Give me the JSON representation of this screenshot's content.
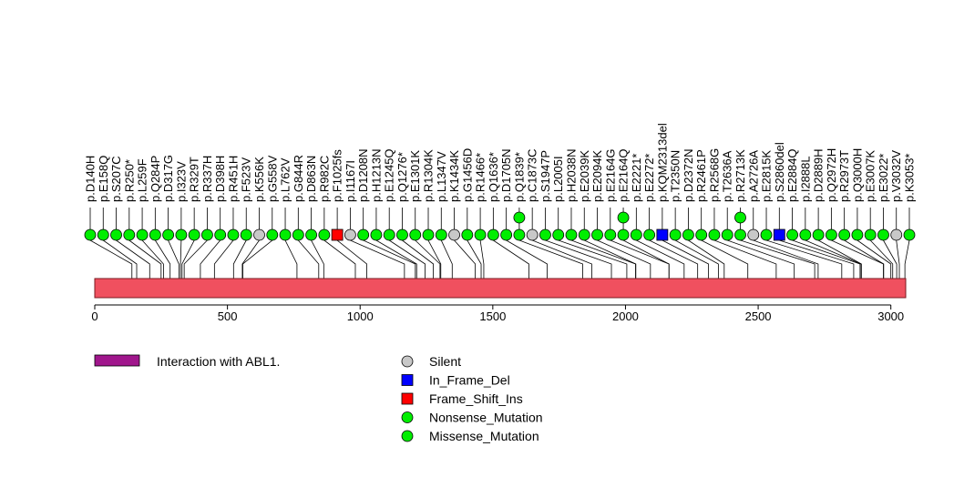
{
  "chart_data": {
    "type": "lollipop",
    "title": "",
    "xlabel": "",
    "ylabel": "",
    "protein_length": 3056,
    "xlim": [
      0,
      3056
    ],
    "x_ticks": [
      0,
      500,
      1000,
      1500,
      2000,
      2500,
      3000
    ],
    "protein_color": "#F0505F",
    "domains": [],
    "domain_legend": {
      "label": "Interaction with ABL1.",
      "color": "#A0168C"
    },
    "mutation_types": [
      {
        "key": "Silent",
        "label": "Silent",
        "color": "#C8C8C8",
        "shape": "circle"
      },
      {
        "key": "In_Frame_Del",
        "label": "In_Frame_Del",
        "color": "#0000FF",
        "shape": "square"
      },
      {
        "key": "Frame_Shift_Ins",
        "label": "Frame_Shift_Ins",
        "color": "#FF0000",
        "shape": "square"
      },
      {
        "key": "Nonsense_Mutation",
        "label": "Nonsense_Mutation",
        "color": "#00EE00",
        "shape": "circle"
      },
      {
        "key": "Missense_Mutation",
        "label": "Missense_Mutation",
        "color": "#00EE00",
        "shape": "circle"
      }
    ],
    "mutations": [
      {
        "label": "p.D140H",
        "pos": 140,
        "type": "Missense_Mutation",
        "count": 1
      },
      {
        "label": "p.E158Q",
        "pos": 158,
        "type": "Missense_Mutation",
        "count": 1
      },
      {
        "label": "p.S207C",
        "pos": 207,
        "type": "Missense_Mutation",
        "count": 1
      },
      {
        "label": "p.R250*",
        "pos": 250,
        "type": "Nonsense_Mutation",
        "count": 1
      },
      {
        "label": "p.L259F",
        "pos": 259,
        "type": "Missense_Mutation",
        "count": 1
      },
      {
        "label": "p.Q284P",
        "pos": 284,
        "type": "Missense_Mutation",
        "count": 1
      },
      {
        "label": "p.D317G",
        "pos": 317,
        "type": "Missense_Mutation",
        "count": 1
      },
      {
        "label": "p.I323V",
        "pos": 323,
        "type": "Missense_Mutation",
        "count": 1
      },
      {
        "label": "p.R329T",
        "pos": 329,
        "type": "Missense_Mutation",
        "count": 1
      },
      {
        "label": "p.R337H",
        "pos": 337,
        "type": "Missense_Mutation",
        "count": 1
      },
      {
        "label": "p.D398H",
        "pos": 398,
        "type": "Missense_Mutation",
        "count": 1
      },
      {
        "label": "p.R451H",
        "pos": 451,
        "type": "Missense_Mutation",
        "count": 1
      },
      {
        "label": "p.F523V",
        "pos": 523,
        "type": "Missense_Mutation",
        "count": 1
      },
      {
        "label": "p.K556K",
        "pos": 556,
        "type": "Silent",
        "count": 1
      },
      {
        "label": "p.G558V",
        "pos": 558,
        "type": "Missense_Mutation",
        "count": 1
      },
      {
        "label": "p.L762V",
        "pos": 762,
        "type": "Missense_Mutation",
        "count": 1
      },
      {
        "label": "p.G844R",
        "pos": 844,
        "type": "Missense_Mutation",
        "count": 1
      },
      {
        "label": "p.D863N",
        "pos": 863,
        "type": "Missense_Mutation",
        "count": 1
      },
      {
        "label": "p.R982C",
        "pos": 982,
        "type": "Missense_Mutation",
        "count": 1
      },
      {
        "label": "p.F1025fs",
        "pos": 1025,
        "type": "Frame_Shift_Ins",
        "count": 1
      },
      {
        "label": "p.I1167I",
        "pos": 1167,
        "type": "Silent",
        "count": 1
      },
      {
        "label": "p.D1208N",
        "pos": 1208,
        "type": "Missense_Mutation",
        "count": 1
      },
      {
        "label": "p.H1213N",
        "pos": 1213,
        "type": "Missense_Mutation",
        "count": 1
      },
      {
        "label": "p.E1245Q",
        "pos": 1245,
        "type": "Missense_Mutation",
        "count": 1
      },
      {
        "label": "p.Q1276*",
        "pos": 1276,
        "type": "Nonsense_Mutation",
        "count": 1
      },
      {
        "label": "p.E1301K",
        "pos": 1301,
        "type": "Missense_Mutation",
        "count": 1
      },
      {
        "label": "p.R1304K",
        "pos": 1304,
        "type": "Missense_Mutation",
        "count": 1
      },
      {
        "label": "p.L1347V",
        "pos": 1347,
        "type": "Missense_Mutation",
        "count": 1
      },
      {
        "label": "p.K1434K",
        "pos": 1434,
        "type": "Silent",
        "count": 1
      },
      {
        "label": "p.G1456D",
        "pos": 1456,
        "type": "Missense_Mutation",
        "count": 1
      },
      {
        "label": "p.R1466*",
        "pos": 1466,
        "type": "Nonsense_Mutation",
        "count": 1
      },
      {
        "label": "p.Q1636*",
        "pos": 1636,
        "type": "Nonsense_Mutation",
        "count": 1
      },
      {
        "label": "p.D1705N",
        "pos": 1705,
        "type": "Missense_Mutation",
        "count": 1
      },
      {
        "label": "p.Q1839*",
        "pos": 1839,
        "type": "Nonsense_Mutation",
        "count": 2
      },
      {
        "label": "p.C1873C",
        "pos": 1873,
        "type": "Silent",
        "count": 1
      },
      {
        "label": "p.S1947P",
        "pos": 1947,
        "type": "Missense_Mutation",
        "count": 1
      },
      {
        "label": "p.L2005I",
        "pos": 2005,
        "type": "Missense_Mutation",
        "count": 1
      },
      {
        "label": "p.H2038N",
        "pos": 2038,
        "type": "Missense_Mutation",
        "count": 1
      },
      {
        "label": "p.E2039K",
        "pos": 2039,
        "type": "Missense_Mutation",
        "count": 1
      },
      {
        "label": "p.E2094K",
        "pos": 2094,
        "type": "Missense_Mutation",
        "count": 1
      },
      {
        "label": "p.E2164G",
        "pos": 2164,
        "type": "Missense_Mutation",
        "count": 1
      },
      {
        "label": "p.E2164Q",
        "pos": 2164,
        "type": "Missense_Mutation",
        "count": 2
      },
      {
        "label": "p.E2221*",
        "pos": 2221,
        "type": "Nonsense_Mutation",
        "count": 1
      },
      {
        "label": "p.E2272*",
        "pos": 2272,
        "type": "Nonsense_Mutation",
        "count": 1
      },
      {
        "label": "p.KQM2313del",
        "pos": 2313,
        "type": "In_Frame_Del",
        "count": 1
      },
      {
        "label": "p.T2350N",
        "pos": 2350,
        "type": "Missense_Mutation",
        "count": 1
      },
      {
        "label": "p.D2372N",
        "pos": 2372,
        "type": "Missense_Mutation",
        "count": 1
      },
      {
        "label": "p.R2461P",
        "pos": 2461,
        "type": "Missense_Mutation",
        "count": 1
      },
      {
        "label": "p.R2568G",
        "pos": 2568,
        "type": "Missense_Mutation",
        "count": 1
      },
      {
        "label": "p.T2636A",
        "pos": 2636,
        "type": "Missense_Mutation",
        "count": 1
      },
      {
        "label": "p.R2713K",
        "pos": 2713,
        "type": "Missense_Mutation",
        "count": 2
      },
      {
        "label": "p.A2726A",
        "pos": 2726,
        "type": "Silent",
        "count": 1
      },
      {
        "label": "p.E2815K",
        "pos": 2815,
        "type": "Missense_Mutation",
        "count": 1
      },
      {
        "label": "p.S2860del",
        "pos": 2860,
        "type": "In_Frame_Del",
        "count": 1
      },
      {
        "label": "p.E2884Q",
        "pos": 2884,
        "type": "Missense_Mutation",
        "count": 1
      },
      {
        "label": "p.I2888L",
        "pos": 2888,
        "type": "Missense_Mutation",
        "count": 1
      },
      {
        "label": "p.D2889H",
        "pos": 2889,
        "type": "Missense_Mutation",
        "count": 1
      },
      {
        "label": "p.Q2972H",
        "pos": 2972,
        "type": "Missense_Mutation",
        "count": 1
      },
      {
        "label": "p.R2973T",
        "pos": 2973,
        "type": "Missense_Mutation",
        "count": 1
      },
      {
        "label": "p.Q3000H",
        "pos": 3000,
        "type": "Missense_Mutation",
        "count": 1
      },
      {
        "label": "p.E3007K",
        "pos": 3007,
        "type": "Missense_Mutation",
        "count": 1
      },
      {
        "label": "p.E3022*",
        "pos": 3022,
        "type": "Nonsense_Mutation",
        "count": 1
      },
      {
        "label": "p.V3032V",
        "pos": 3032,
        "type": "Silent",
        "count": 1
      },
      {
        "label": "p.K3053*",
        "pos": 3053,
        "type": "Nonsense_Mutation",
        "count": 1
      }
    ]
  }
}
